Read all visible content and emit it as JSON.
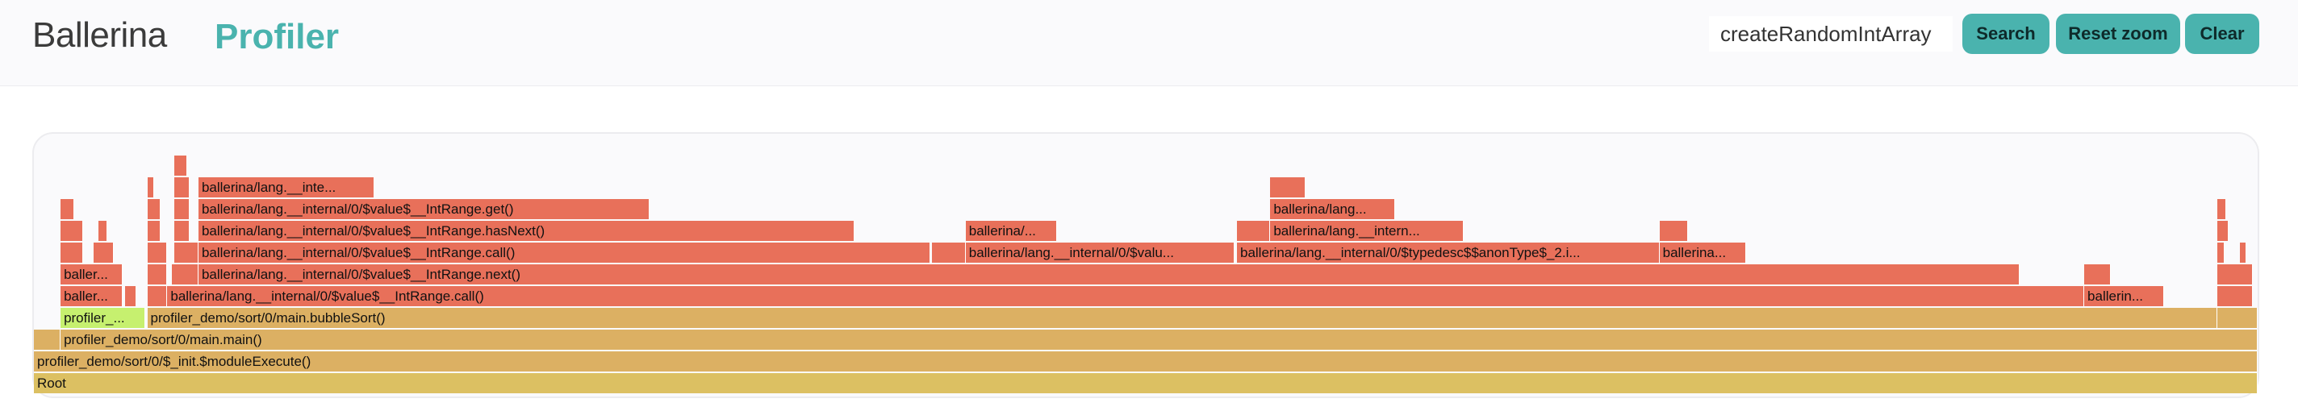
{
  "header": {
    "logo_text": "Ballerina",
    "logo_suffix": "Profiler",
    "search_value": "createRandomIntArray",
    "search_label": "Search",
    "reset_zoom_label": "Reset zoom",
    "clear_label": "Clear"
  },
  "colors": {
    "accent": "#4ab3ae",
    "frame_red": "#e8705a",
    "frame_tan": "#dcb063",
    "frame_root": "#dcc062",
    "frame_match": "#c6f06f"
  },
  "flamegraph": {
    "frames": [
      {
        "label": "Root",
        "row": 0,
        "start": 0.0,
        "end": 1.0,
        "color": "#dcc062"
      },
      {
        "label": "profiler_demo/sort/0/$_init.$moduleExecute()",
        "row": 1,
        "start": 0.0,
        "end": 1.0,
        "color": "#dcb063"
      },
      {
        "label": "",
        "row": 2,
        "start": 0.0,
        "end": 0.012,
        "color": "#dcb063"
      },
      {
        "label": "profiler_demo/sort/0/main.main()",
        "row": 2,
        "start": 0.012,
        "end": 1.0,
        "color": "#dcb063"
      },
      {
        "label": "profiler_...",
        "row": 3,
        "start": 0.012,
        "end": 0.05,
        "color": "#c6f06f"
      },
      {
        "label": "profiler_demo/sort/0/main.bubbleSort()",
        "row": 3,
        "start": 0.051,
        "end": 0.982,
        "color": "#dcb063"
      },
      {
        "label": "",
        "row": 3,
        "start": 0.982,
        "end": 1.0,
        "color": "#dcb063"
      },
      {
        "label": "baller...",
        "row": 4,
        "start": 0.012,
        "end": 0.04,
        "color": "#e8705a"
      },
      {
        "label": "",
        "row": 4,
        "start": 0.041,
        "end": 0.046,
        "color": "#e8705a"
      },
      {
        "label": "",
        "row": 4,
        "start": 0.051,
        "end": 0.06,
        "color": "#e8705a"
      },
      {
        "label": "ballerina/lang.__internal/0/$value$__IntRange.call()",
        "row": 4,
        "start": 0.06,
        "end": 0.922,
        "color": "#e8705a"
      },
      {
        "label": "ballerin...",
        "row": 4,
        "start": 0.922,
        "end": 0.958,
        "color": "#e8705a"
      },
      {
        "label": "",
        "row": 4,
        "start": 0.982,
        "end": 0.998,
        "color": "#e8705a"
      },
      {
        "label": "baller...",
        "row": 5,
        "start": 0.012,
        "end": 0.04,
        "color": "#e8705a"
      },
      {
        "label": "",
        "row": 5,
        "start": 0.051,
        "end": 0.06,
        "color": "#e8705a"
      },
      {
        "label": "",
        "row": 5,
        "start": 0.062,
        "end": 0.074,
        "color": "#e8705a"
      },
      {
        "label": "ballerina/lang.__internal/0/$value$__IntRange.next()",
        "row": 5,
        "start": 0.074,
        "end": 0.893,
        "color": "#e8705a"
      },
      {
        "label": "",
        "row": 5,
        "start": 0.922,
        "end": 0.934,
        "color": "#e8705a"
      },
      {
        "label": "",
        "row": 5,
        "start": 0.982,
        "end": 0.998,
        "color": "#e8705a"
      },
      {
        "label": "",
        "row": 6,
        "start": 0.012,
        "end": 0.022,
        "color": "#e8705a"
      },
      {
        "label": "",
        "row": 6,
        "start": 0.027,
        "end": 0.036,
        "color": "#e8705a"
      },
      {
        "label": "",
        "row": 6,
        "start": 0.051,
        "end": 0.06,
        "color": "#e8705a"
      },
      {
        "label": "",
        "row": 6,
        "start": 0.063,
        "end": 0.074,
        "color": "#e8705a"
      },
      {
        "label": "ballerina/lang.__internal/0/$value$__IntRange.call()",
        "row": 6,
        "start": 0.074,
        "end": 0.403,
        "color": "#e8705a"
      },
      {
        "label": "",
        "row": 6,
        "start": 0.404,
        "end": 0.419,
        "color": "#e8705a"
      },
      {
        "label": "ballerina/lang.__internal/0/$valu...",
        "row": 6,
        "start": 0.419,
        "end": 0.54,
        "color": "#e8705a"
      },
      {
        "label": "ballerina/lang.__internal/0/$typedesc$$anonType$_2.i...",
        "row": 6,
        "start": 0.541,
        "end": 0.731,
        "color": "#e8705a"
      },
      {
        "label": "ballerina...",
        "row": 6,
        "start": 0.731,
        "end": 0.77,
        "color": "#e8705a"
      },
      {
        "label": "",
        "row": 6,
        "start": 0.982,
        "end": 0.985,
        "color": "#e8705a"
      },
      {
        "label": "",
        "row": 6,
        "start": 0.992,
        "end": 0.995,
        "color": "#e8705a"
      },
      {
        "label": "",
        "row": 7,
        "start": 0.012,
        "end": 0.022,
        "color": "#e8705a"
      },
      {
        "label": "",
        "row": 7,
        "start": 0.029,
        "end": 0.033,
        "color": "#e8705a"
      },
      {
        "label": "",
        "row": 7,
        "start": 0.051,
        "end": 0.057,
        "color": "#e8705a"
      },
      {
        "label": "",
        "row": 7,
        "start": 0.063,
        "end": 0.07,
        "color": "#e8705a"
      },
      {
        "label": "ballerina/lang.__internal/0/$value$__IntRange.hasNext()",
        "row": 7,
        "start": 0.074,
        "end": 0.369,
        "color": "#e8705a"
      },
      {
        "label": "ballerina/...",
        "row": 7,
        "start": 0.419,
        "end": 0.46,
        "color": "#e8705a"
      },
      {
        "label": "",
        "row": 7,
        "start": 0.541,
        "end": 0.556,
        "color": "#e8705a"
      },
      {
        "label": "ballerina/lang.__intern...",
        "row": 7,
        "start": 0.556,
        "end": 0.643,
        "color": "#e8705a"
      },
      {
        "label": "",
        "row": 7,
        "start": 0.731,
        "end": 0.744,
        "color": "#e8705a"
      },
      {
        "label": "",
        "row": 7,
        "start": 0.982,
        "end": 0.987,
        "color": "#e8705a"
      },
      {
        "label": "",
        "row": 8,
        "start": 0.012,
        "end": 0.018,
        "color": "#e8705a"
      },
      {
        "label": "",
        "row": 8,
        "start": 0.051,
        "end": 0.057,
        "color": "#e8705a"
      },
      {
        "label": "",
        "row": 8,
        "start": 0.063,
        "end": 0.07,
        "color": "#e8705a"
      },
      {
        "label": "ballerina/lang.__internal/0/$value$__IntRange.get()",
        "row": 8,
        "start": 0.074,
        "end": 0.277,
        "color": "#e8705a"
      },
      {
        "label": "ballerina/lang...",
        "row": 8,
        "start": 0.556,
        "end": 0.612,
        "color": "#e8705a"
      },
      {
        "label": "",
        "row": 8,
        "start": 0.982,
        "end": 0.986,
        "color": "#e8705a"
      },
      {
        "label": "",
        "row": 9,
        "start": 0.051,
        "end": 0.054,
        "color": "#e8705a"
      },
      {
        "label": "",
        "row": 9,
        "start": 0.063,
        "end": 0.07,
        "color": "#e8705a"
      },
      {
        "label": "ballerina/lang.__inte...",
        "row": 9,
        "start": 0.074,
        "end": 0.153,
        "color": "#e8705a"
      },
      {
        "label": "",
        "row": 9,
        "start": 0.556,
        "end": 0.572,
        "color": "#e8705a"
      },
      {
        "label": "",
        "row": 10,
        "start": 0.063,
        "end": 0.069,
        "color": "#e8705a"
      }
    ]
  }
}
